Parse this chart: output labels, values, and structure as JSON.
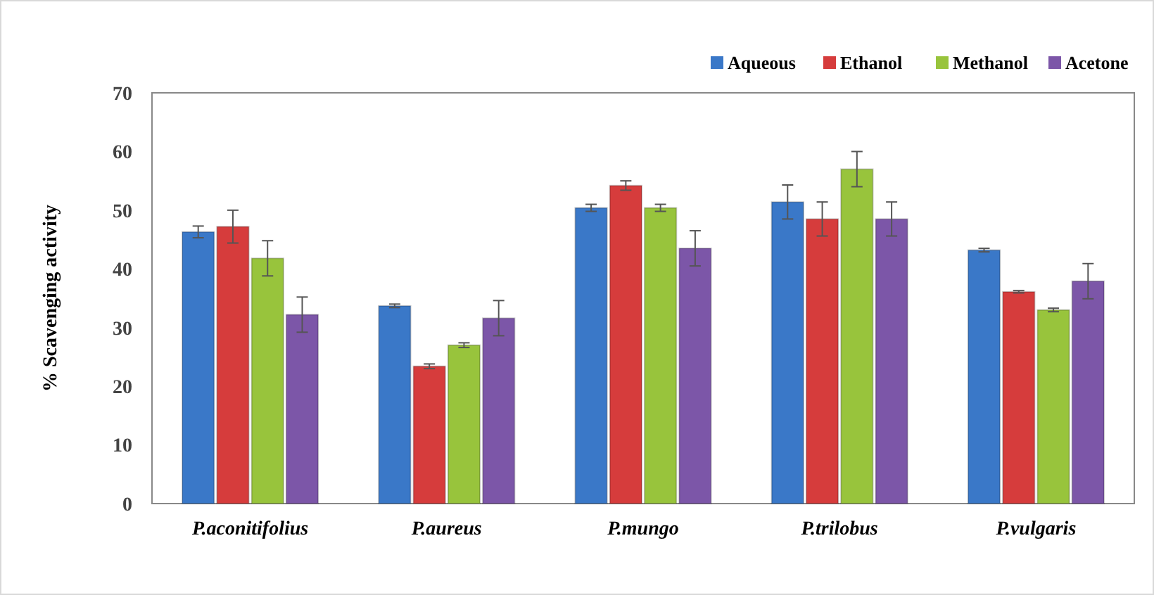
{
  "chart_data": {
    "type": "bar",
    "ylabel": "% Scavenging activity",
    "categories": [
      "P.aconitifolius",
      "P.aureus",
      "P.mungo",
      "P.trilobus",
      "P.vulgaris"
    ],
    "series": [
      {
        "name": "Aqueous",
        "color": "#3a78c8",
        "values": [
          46.3,
          33.7,
          50.4,
          51.4,
          43.2
        ],
        "errors": [
          1,
          0.3,
          0.6,
          2.9,
          0.3
        ]
      },
      {
        "name": "Ethanol",
        "color": "#d63c3c",
        "values": [
          47.2,
          23.4,
          54.2,
          48.5,
          36.1
        ],
        "errors": [
          2.8,
          0.4,
          0.8,
          2.9,
          0.2
        ]
      },
      {
        "name": "Methanol",
        "color": "#98c43c",
        "values": [
          41.8,
          27,
          50.4,
          57,
          33
        ],
        "errors": [
          3,
          0.4,
          0.6,
          3,
          0.3
        ]
      },
      {
        "name": "Acetone",
        "color": "#7c56a8",
        "values": [
          32.2,
          31.6,
          43.5,
          48.5,
          37.9
        ],
        "errors": [
          3,
          3,
          3,
          2.9,
          3
        ]
      }
    ],
    "ylim": [
      0,
      70
    ],
    "yticks": [
      0,
      10,
      20,
      30,
      40,
      50,
      60,
      70
    ],
    "grid": false,
    "legend": "top right"
  }
}
